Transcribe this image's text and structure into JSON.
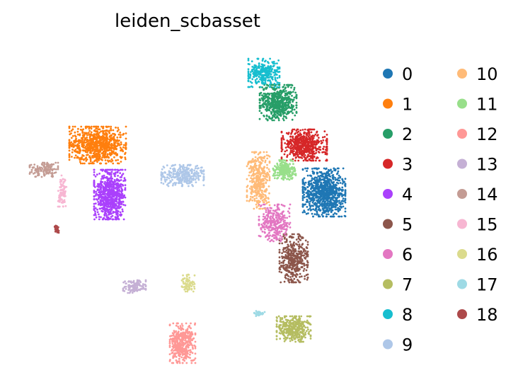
{
  "chart_data": {
    "type": "scatter",
    "title": "leiden_scbasset",
    "xlabel": "",
    "ylabel": "",
    "grid": false,
    "legend_position": "right",
    "legend_columns": 2,
    "clusters": [
      {
        "name": "0",
        "color": "#1f77b4",
        "center": [
          458,
          272
        ],
        "spread": [
          30,
          34
        ],
        "n": 900
      },
      {
        "name": "1",
        "color": "#ff7f0e",
        "center": [
          138,
          205
        ],
        "spread": [
          40,
          26
        ],
        "n": 800
      },
      {
        "name": "2",
        "color": "#279e68",
        "center": [
          393,
          145
        ],
        "spread": [
          26,
          25
        ],
        "n": 560
      },
      {
        "name": "3",
        "color": "#d62728",
        "center": [
          430,
          205
        ],
        "spread": [
          32,
          22
        ],
        "n": 560
      },
      {
        "name": "4",
        "color": "#aa40fc",
        "center": [
          155,
          275
        ],
        "spread": [
          22,
          35
        ],
        "n": 720
      },
      {
        "name": "5",
        "color": "#8c564b",
        "center": [
          415,
          365
        ],
        "spread": [
          20,
          34
        ],
        "n": 420
      },
      {
        "name": "6",
        "color": "#e377c2",
        "center": [
          388,
          315
        ],
        "spread": [
          22,
          26
        ],
        "n": 300
      },
      {
        "name": "7",
        "color": "#b5bd61",
        "center": [
          415,
          465
        ],
        "spread": [
          24,
          18
        ],
        "n": 380
      },
      {
        "name": "8",
        "color": "#17becf",
        "center": [
          373,
          103
        ],
        "spread": [
          22,
          20
        ],
        "n": 300
      },
      {
        "name": "9",
        "color": "#aec7e8",
        "center": [
          258,
          248
        ],
        "spread": [
          30,
          15
        ],
        "n": 300
      },
      {
        "name": "10",
        "color": "#ffbb78",
        "center": [
          365,
          255
        ],
        "spread": [
          16,
          40
        ],
        "n": 380
      },
      {
        "name": "11",
        "color": "#98df8a",
        "center": [
          402,
          240
        ],
        "spread": [
          16,
          14
        ],
        "n": 220
      },
      {
        "name": "12",
        "color": "#ff9896",
        "center": [
          258,
          485
        ],
        "spread": [
          18,
          28
        ],
        "n": 420
      },
      {
        "name": "13",
        "color": "#c5b0d5",
        "center": [
          190,
          405
        ],
        "spread": [
          16,
          9
        ],
        "n": 120
      },
      {
        "name": "14",
        "color": "#c49c94",
        "center": [
          62,
          240
        ],
        "spread": [
          20,
          10
        ],
        "n": 140
      },
      {
        "name": "15",
        "color": "#f7b6d2",
        "center": [
          88,
          270
        ],
        "spread": [
          6,
          22
        ],
        "n": 90
      },
      {
        "name": "16",
        "color": "#dbdb8d",
        "center": [
          266,
          400
        ],
        "spread": [
          9,
          12
        ],
        "n": 80
      },
      {
        "name": "17",
        "color": "#9edae5",
        "center": [
          366,
          443
        ],
        "spread": [
          8,
          5
        ],
        "n": 30
      },
      {
        "name": "18",
        "color": "#ad494a",
        "center": [
          80,
          324
        ],
        "spread": [
          3,
          5
        ],
        "n": 35
      }
    ]
  }
}
